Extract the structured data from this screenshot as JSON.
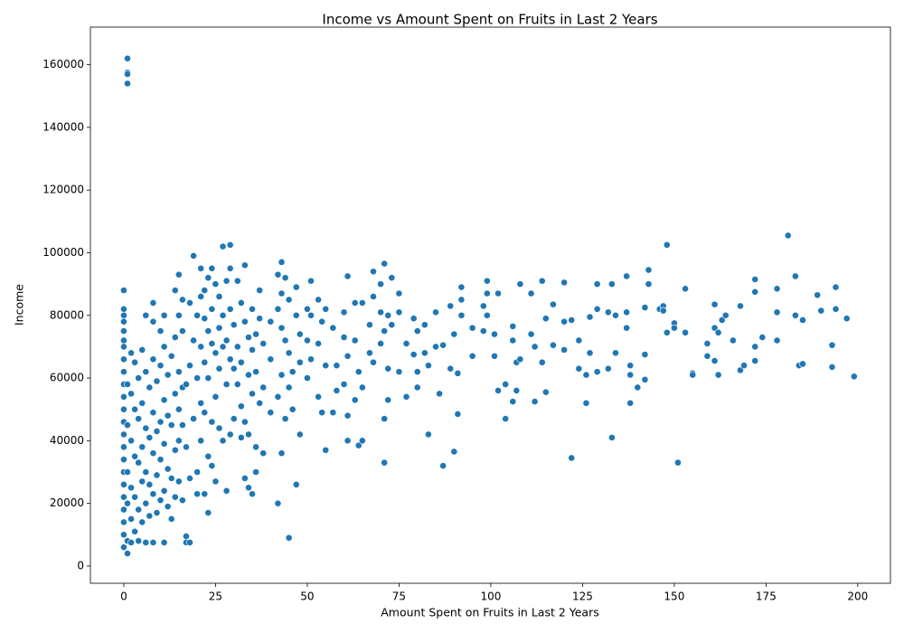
{
  "chart_data": {
    "type": "scatter",
    "title": "Income vs Amount Spent on Fruits in Last 2 Years",
    "x_label": "Amount Spent on Fruits in Last 2 Years",
    "y_label": "Income",
    "color": "#1f77b4",
    "grid": false,
    "xlim": [
      -9.1,
      208.9
    ],
    "ylim": [
      -5500,
      172000
    ],
    "xticks": [
      0,
      25,
      50,
      75,
      100,
      125,
      150,
      175,
      200
    ],
    "yticks": [
      0,
      20000,
      40000,
      60000,
      80000,
      100000,
      120000,
      140000,
      160000
    ],
    "x": [
      0,
      0,
      0,
      0,
      0,
      0,
      0,
      0,
      0,
      0,
      0,
      0,
      0,
      0,
      0,
      0,
      0,
      0,
      0,
      0,
      0,
      0,
      0,
      1,
      1,
      1,
      1,
      1,
      1,
      1,
      1,
      1,
      1,
      2,
      2,
      2,
      2,
      2,
      2,
      3,
      3,
      3,
      3,
      3,
      4,
      4,
      4,
      4,
      4,
      5,
      5,
      5,
      5,
      5,
      6,
      6,
      6,
      6,
      6,
      6,
      7,
      7,
      7,
      7,
      8,
      8,
      8,
      8,
      8,
      8,
      8,
      9,
      9,
      9,
      9,
      10,
      10,
      10,
      10,
      10,
      11,
      11,
      11,
      11,
      11,
      11,
      12,
      12,
      12,
      12,
      13,
      13,
      13,
      13,
      14,
      14,
      14,
      14,
      14,
      15,
      15,
      15,
      15,
      15,
      15,
      16,
      16,
      16,
      16,
      16,
      17,
      17,
      17,
      17,
      18,
      18,
      18,
      18,
      19,
      19,
      19,
      20,
      20,
      20,
      20,
      21,
      21,
      21,
      21,
      21,
      22,
      22,
      22,
      22,
      22,
      23,
      23,
      23,
      23,
      23,
      24,
      24,
      24,
      24,
      24,
      25,
      25,
      25,
      25,
      26,
      26,
      26,
      26,
      27,
      27,
      27,
      27,
      28,
      28,
      28,
      28,
      29,
      29,
      29,
      29,
      29,
      30,
      30,
      30,
      31,
      31,
      31,
      32,
      32,
      32,
      32,
      33,
      33,
      33,
      33,
      34,
      34,
      34,
      34,
      35,
      35,
      35,
      35,
      36,
      36,
      36,
      36,
      37,
      37,
      37,
      38,
      38,
      38,
      40,
      40,
      40,
      42,
      42,
      42,
      42,
      43,
      43,
      43,
      43,
      43,
      44,
      44,
      44,
      45,
      45,
      45,
      45,
      46,
      46,
      47,
      47,
      47,
      48,
      48,
      48,
      50,
      50,
      50,
      51,
      51,
      51,
      53,
      53,
      53,
      54,
      54,
      55,
      55,
      55,
      57,
      57,
      58,
      58,
      60,
      60,
      60,
      61,
      61,
      61,
      61,
      63,
      63,
      63,
      64,
      64,
      65,
      65,
      65,
      67,
      67,
      68,
      68,
      68,
      70,
      70,
      70,
      71,
      71,
      71,
      71,
      72,
      72,
      72,
      73,
      73,
      75,
      75,
      75,
      77,
      77,
      79,
      79,
      80,
      80,
      80,
      82,
      82,
      83,
      83,
      85,
      85,
      86,
      87,
      87,
      89,
      89,
      90,
      90,
      91,
      91,
      92,
      92,
      92,
      95,
      95,
      98,
      98,
      99,
      99,
      99,
      101,
      101,
      102,
      102,
      104,
      104,
      106,
      106,
      106,
      107,
      107,
      108,
      108,
      111,
      111,
      112,
      112,
      114,
      114,
      115,
      115,
      117,
      117,
      120,
      120,
      120,
      122,
      122,
      124,
      124,
      126,
      126,
      127,
      127,
      129,
      129,
      129,
      132,
      132,
      133,
      133,
      134,
      134,
      137,
      137,
      137,
      138,
      138,
      138,
      140,
      142,
      142,
      142,
      143,
      143,
      146,
      147,
      147,
      148,
      148,
      150,
      150,
      151,
      153,
      153,
      155,
      155,
      159,
      159,
      161,
      161,
      161,
      162,
      162,
      163,
      164,
      166,
      168,
      168,
      169,
      172,
      172,
      172,
      172,
      174,
      178,
      178,
      178,
      181,
      183,
      183,
      184,
      185,
      185,
      189,
      190,
      193,
      193,
      194,
      194,
      197,
      199
    ],
    "values": [
      88000,
      82000,
      80000,
      78000,
      75000,
      72000,
      70000,
      66000,
      62000,
      58000,
      54000,
      50000,
      46000,
      42000,
      38000,
      34000,
      30000,
      26000,
      22000,
      18000,
      14000,
      10000,
      6000,
      162000,
      157500,
      157000,
      154000,
      4000,
      58000,
      45000,
      30000,
      20000,
      8000,
      68000,
      55000,
      40000,
      25000,
      15000,
      7500,
      65000,
      50000,
      35000,
      22000,
      11000,
      60000,
      47000,
      33000,
      18000,
      8000,
      69000,
      52000,
      38000,
      27000,
      14000,
      62000,
      44000,
      30000,
      20000,
      7500,
      80000,
      57000,
      41000,
      26000,
      16000,
      78000,
      66000,
      49000,
      36000,
      23000,
      7500,
      84000,
      59000,
      43000,
      29000,
      17000,
      75000,
      64000,
      46000,
      34000,
      21000,
      70000,
      53000,
      39000,
      24000,
      7500,
      80000,
      61000,
      48000,
      31000,
      19000,
      67000,
      45000,
      28000,
      15000,
      88000,
      73000,
      55000,
      37000,
      22000,
      93000,
      80000,
      62000,
      50000,
      40000,
      27000,
      85000,
      75000,
      57000,
      45000,
      21000,
      7500,
      9500,
      58000,
      38000,
      7500,
      84000,
      64000,
      28000,
      99000,
      72000,
      47000,
      80000,
      60000,
      30000,
      23000,
      95000,
      86000,
      70000,
      52000,
      40000,
      88000,
      79000,
      65000,
      49000,
      23000,
      17000,
      92000,
      75000,
      60000,
      35000,
      95000,
      82000,
      71000,
      46000,
      32000,
      90000,
      68000,
      54000,
      27000,
      86000,
      76000,
      63000,
      44000,
      102000,
      80000,
      70000,
      40000,
      91000,
      72000,
      58000,
      24000,
      102500,
      95000,
      82000,
      66000,
      42000,
      77000,
      63000,
      47000,
      91000,
      70000,
      58000,
      84000,
      65000,
      51000,
      41000,
      96000,
      78000,
      28000,
      46000,
      73000,
      61000,
      42000,
      25000,
      82000,
      69000,
      55000,
      23000,
      74000,
      62000,
      38000,
      30000,
      88000,
      79000,
      52000,
      71000,
      57000,
      36000,
      78000,
      66000,
      49000,
      93000,
      82000,
      54000,
      20000,
      97000,
      87000,
      76000,
      61000,
      36000,
      92000,
      72000,
      47000,
      9000,
      85000,
      68000,
      57000,
      62000,
      50000,
      89000,
      26000,
      80000,
      74000,
      42000,
      65000,
      82000,
      72000,
      60000,
      91000,
      80000,
      66000,
      85000,
      71000,
      54000,
      49000,
      78000,
      37000,
      82000,
      64000,
      76000,
      49000,
      64000,
      56000,
      81000,
      73000,
      58000,
      92500,
      40000,
      48000,
      67000,
      84000,
      72000,
      53000,
      38500,
      62000,
      40000,
      84000,
      57000,
      77000,
      68000,
      94000,
      86000,
      65000,
      90000,
      81000,
      71000,
      96500,
      33000,
      47000,
      75000,
      53000,
      80000,
      63000,
      92000,
      77000,
      87000,
      81000,
      62000,
      54000,
      71000,
      79000,
      67500,
      75000,
      62000,
      57000,
      68000,
      77000,
      42000,
      64000,
      81000,
      70000,
      55000,
      32000,
      70500,
      83000,
      63000,
      36500,
      74000,
      48500,
      61500,
      89000,
      85000,
      80000,
      76000,
      67000,
      83000,
      75000,
      91000,
      87000,
      80000,
      67000,
      74000,
      87000,
      56000,
      47000,
      58000,
      52500,
      76500,
      72000,
      56000,
      65000,
      90000,
      66000,
      87000,
      74000,
      52500,
      70000,
      91000,
      65000,
      55500,
      79000,
      83500,
      70500,
      90500,
      78000,
      69000,
      34500,
      78500,
      63000,
      72000,
      52000,
      61000,
      79500,
      68000,
      90000,
      82000,
      62000,
      81000,
      63000,
      41000,
      90000,
      68000,
      80000,
      92500,
      81000,
      76000,
      52000,
      64000,
      61000,
      57000,
      59500,
      82500,
      67500,
      94500,
      90000,
      82000,
      83000,
      81500,
      102500,
      74500,
      77500,
      76000,
      33000,
      88500,
      74500,
      61500,
      61000,
      67000,
      71000,
      83500,
      76000,
      65500,
      61000,
      74500,
      78500,
      80000,
      72000,
      83000,
      62500,
      64000,
      91500,
      87500,
      70000,
      65500,
      73000,
      88500,
      81000,
      72000,
      105500,
      92500,
      80000,
      64000,
      78500,
      64500,
      86500,
      81500,
      70500,
      63500,
      89000,
      82000,
      79000,
      60500
    ]
  }
}
